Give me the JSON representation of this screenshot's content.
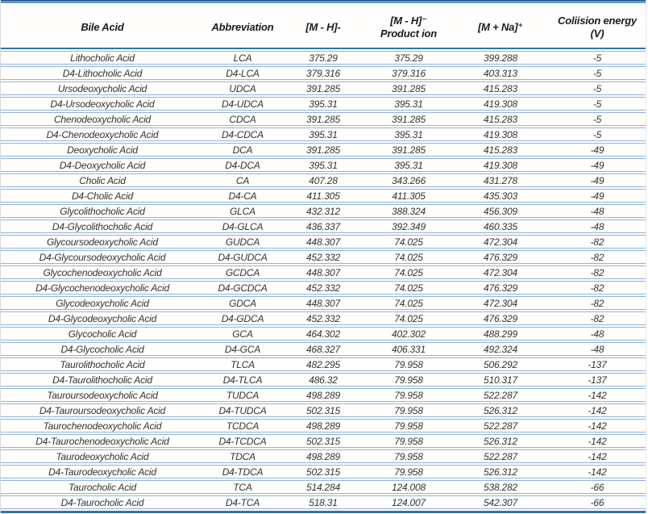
{
  "colors": {
    "top_rule_blue": "#5b9bd5",
    "header_rule_blue": "#2e75b6",
    "row_line_blue": "#8eb4dc",
    "text": "#333333"
  },
  "table": {
    "columns": [
      {
        "key": "name",
        "label": "Bile Acid"
      },
      {
        "key": "abbr",
        "label": "Abbreviation"
      },
      {
        "key": "mh",
        "label": "[M - H]-"
      },
      {
        "key": "mh_product",
        "label": "[M - H]⁻\nProduct ion"
      },
      {
        "key": "mna",
        "label": "[M + Na]⁺"
      },
      {
        "key": "ce",
        "label": "Coliision energy\n(V)"
      }
    ],
    "rows": [
      {
        "name": "Lithocholic Acid",
        "abbr": "LCA",
        "mh": "375.29",
        "mh_product": "375.29",
        "mna": "399.288",
        "ce": "-5"
      },
      {
        "name": "D4-Lithocholic Acid",
        "abbr": "D4-LCA",
        "mh": "379.316",
        "mh_product": "379.316",
        "mna": "403.313",
        "ce": "-5"
      },
      {
        "name": "Ursodeoxycholic Acid",
        "abbr": "UDCA",
        "mh": "391.285",
        "mh_product": "391.285",
        "mna": "415.283",
        "ce": "-5"
      },
      {
        "name": "D4-Ursodeoxycholic Acid",
        "abbr": "D4-UDCA",
        "mh": "395.31",
        "mh_product": "395.31",
        "mna": "419.308",
        "ce": "-5"
      },
      {
        "name": "Chenodeoxycholic Acid",
        "abbr": "CDCA",
        "mh": "391.285",
        "mh_product": "391.285",
        "mna": "415.283",
        "ce": "-5"
      },
      {
        "name": "D4-Chenodeoxycholic Acid",
        "abbr": "D4-CDCA",
        "mh": "395.31",
        "mh_product": "395.31",
        "mna": "419.308",
        "ce": "-5"
      },
      {
        "name": "Deoxycholic Acid",
        "abbr": "DCA",
        "mh": "391.285",
        "mh_product": "391.285",
        "mna": "415.283",
        "ce": "-49"
      },
      {
        "name": "D4-Deoxycholic Acid",
        "abbr": "D4-DCA",
        "mh": "395.31",
        "mh_product": "395.31",
        "mna": "419.308",
        "ce": "-49"
      },
      {
        "name": "Cholic Acid",
        "abbr": "CA",
        "mh": "407.28",
        "mh_product": "343.266",
        "mna": "431.278",
        "ce": "-49"
      },
      {
        "name": "D4-Cholic Acid",
        "abbr": "D4-CA",
        "mh": "411.305",
        "mh_product": "411.305",
        "mna": "435.303",
        "ce": "-49"
      },
      {
        "name": "Glycolithocholic Acid",
        "abbr": "GLCA",
        "mh": "432.312",
        "mh_product": "388.324",
        "mna": "456.309",
        "ce": "-48"
      },
      {
        "name": "D4-Glycolithocholic Acid",
        "abbr": "D4-GLCA",
        "mh": "436.337",
        "mh_product": "392.349",
        "mna": "460.335",
        "ce": "-48"
      },
      {
        "name": "Glycoursodeoxycholic Acid",
        "abbr": "GUDCA",
        "mh": "448.307",
        "mh_product": "74.025",
        "mna": "472.304",
        "ce": "-82"
      },
      {
        "name": "D4-Glycoursodeoxycholic Acid",
        "abbr": "D4-GUDCA",
        "mh": "452.332",
        "mh_product": "74.025",
        "mna": "476.329",
        "ce": "-82"
      },
      {
        "name": "Glycochenodeoxycholic Acid",
        "abbr": "GCDCA",
        "mh": "448.307",
        "mh_product": "74.025",
        "mna": "472.304",
        "ce": "-82"
      },
      {
        "name": "D4-Glycochenodeoxycholic Acid",
        "abbr": "D4-GCDCA",
        "mh": "452.332",
        "mh_product": "74.025",
        "mna": "476.329",
        "ce": "-82"
      },
      {
        "name": "Glycodeoxycholic Acid",
        "abbr": "GDCA",
        "mh": "448.307",
        "mh_product": "74.025",
        "mna": "472.304",
        "ce": "-82"
      },
      {
        "name": "D4-Glycodeoxycholic Acid",
        "abbr": "D4-GDCA",
        "mh": "452.332",
        "mh_product": "74.025",
        "mna": "476.329",
        "ce": "-82"
      },
      {
        "name": "Glycocholic Acid",
        "abbr": "GCA",
        "mh": "464.302",
        "mh_product": "402.302",
        "mna": "488.299",
        "ce": "-48"
      },
      {
        "name": "D4-Glycocholic Acid",
        "abbr": "D4-GCA",
        "mh": "468.327",
        "mh_product": "406.331",
        "mna": "492.324",
        "ce": "-48"
      },
      {
        "name": "Taurolithocholic Acid",
        "abbr": "TLCA",
        "mh": "482.295",
        "mh_product": "79.958",
        "mna": "506.292",
        "ce": "-137"
      },
      {
        "name": "D4-Taurolithocholic Acid",
        "abbr": "D4-TLCA",
        "mh": "486.32",
        "mh_product": "79.958",
        "mna": "510.317",
        "ce": "-137"
      },
      {
        "name": "Tauroursodeoxycholic Acid",
        "abbr": "TUDCA",
        "mh": "498.289",
        "mh_product": "79.958",
        "mna": "522.287",
        "ce": "-142"
      },
      {
        "name": "D4-Tauroursodeoxycholic Acid",
        "abbr": "D4-TUDCA",
        "mh": "502.315",
        "mh_product": "79.958",
        "mna": "526.312",
        "ce": "-142"
      },
      {
        "name": "Taurochenodeoxycholic Acid",
        "abbr": "TCDCA",
        "mh": "498.289",
        "mh_product": "79.958",
        "mna": "522.287",
        "ce": "-142"
      },
      {
        "name": "D4-Taurochenodeoxycholic Acid",
        "abbr": "D4-TCDCA",
        "mh": "502.315",
        "mh_product": "79.958",
        "mna": "526.312",
        "ce": "-142"
      },
      {
        "name": "Taurodeoxycholic Acid",
        "abbr": "TDCA",
        "mh": "498.289",
        "mh_product": "79.958",
        "mna": "522.287",
        "ce": "-142"
      },
      {
        "name": "D4-Taurodeoxycholic Acid",
        "abbr": "D4-TDCA",
        "mh": "502.315",
        "mh_product": "79.958",
        "mna": "526.312",
        "ce": "-142"
      },
      {
        "name": "Taurocholic Acid",
        "abbr": "TCA",
        "mh": "514.284",
        "mh_product": "124.008",
        "mna": "538.282",
        "ce": "-66"
      },
      {
        "name": "D4-Taurocholic Acid",
        "abbr": "D4-TCA",
        "mh": "518.31",
        "mh_product": "124.007",
        "mna": "542.307",
        "ce": "-66"
      }
    ]
  }
}
